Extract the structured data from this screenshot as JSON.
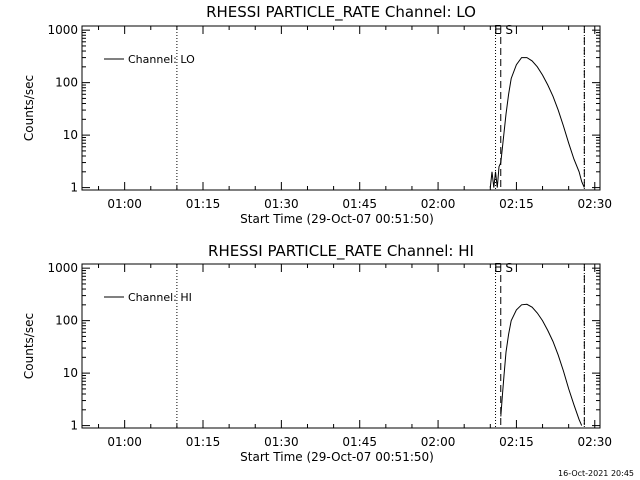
{
  "chart_data": [
    {
      "type": "line",
      "title": "RHESSI PARTICLE_RATE Channel: LO",
      "xlabel": "Start Time (29-Oct-07 00:51:50)",
      "ylabel": "Counts/sec",
      "yscale": "log",
      "ylim": [
        0.9,
        1200
      ],
      "xlim": [
        "00:51:50",
        "02:31:00"
      ],
      "x_ticks": [
        "01:00",
        "01:15",
        "01:30",
        "01:45",
        "02:00",
        "02:15",
        "02:30"
      ],
      "y_ticks": [
        "1",
        "10",
        "100",
        "1000"
      ],
      "legend": "top-left",
      "legend_entries": [
        "Channel: LO"
      ],
      "marker_label": "E S",
      "dotted_markers": [
        "01:10",
        "02:11",
        "02:28"
      ],
      "dashed_markers": [
        "02:12",
        "02:28"
      ],
      "series": [
        {
          "name": "Channel: LO",
          "x": [
            "02:10:00",
            "02:10:20",
            "02:10:40",
            "02:11:00",
            "02:11:20",
            "02:11:40",
            "02:12:00",
            "02:12:20",
            "02:12:40",
            "02:13:00",
            "02:13:30",
            "02:14:00",
            "02:15:00",
            "02:16:00",
            "02:17:00",
            "02:18:00",
            "02:19:00",
            "02:20:00",
            "02:21:00",
            "02:22:00",
            "02:23:00",
            "02:24:00",
            "02:25:00",
            "02:26:00",
            "02:27:00",
            "02:27:30",
            "02:28:00"
          ],
          "values": [
            1,
            2,
            1,
            2,
            1,
            2.5,
            3,
            6,
            12,
            25,
            60,
            120,
            220,
            300,
            300,
            260,
            200,
            140,
            90,
            55,
            30,
            15,
            7,
            3.5,
            2,
            1.3,
            1
          ]
        }
      ]
    },
    {
      "type": "line",
      "title": "RHESSI PARTICLE_RATE Channel: HI",
      "xlabel": "Start Time (29-Oct-07 00:51:50)",
      "ylabel": "Counts/sec",
      "yscale": "log",
      "ylim": [
        0.9,
        1200
      ],
      "xlim": [
        "00:51:50",
        "02:31:00"
      ],
      "x_ticks": [
        "01:00",
        "01:15",
        "01:30",
        "01:45",
        "02:00",
        "02:15",
        "02:30"
      ],
      "y_ticks": [
        "1",
        "10",
        "100",
        "1000"
      ],
      "legend": "top-left",
      "legend_entries": [
        "Channel: HI"
      ],
      "marker_label": "E S",
      "dotted_markers": [
        "01:10",
        "02:11",
        "02:28"
      ],
      "dashed_markers": [
        "02:12",
        "02:28"
      ],
      "series": [
        {
          "name": "Channel: HI",
          "x": [
            "02:12:00",
            "02:12:20",
            "02:12:40",
            "02:13:00",
            "02:13:30",
            "02:14:00",
            "02:15:00",
            "02:16:00",
            "02:17:00",
            "02:18:00",
            "02:19:00",
            "02:20:00",
            "02:21:00",
            "02:22:00",
            "02:23:00",
            "02:24:00",
            "02:25:00",
            "02:26:00",
            "02:27:00",
            "02:27:30"
          ],
          "values": [
            1.5,
            4,
            10,
            25,
            55,
            100,
            160,
            200,
            205,
            180,
            140,
            100,
            65,
            40,
            22,
            11,
            5,
            2.5,
            1.3,
            1
          ]
        }
      ]
    }
  ],
  "footer_stamp": "16-Oct-2021 20:45"
}
